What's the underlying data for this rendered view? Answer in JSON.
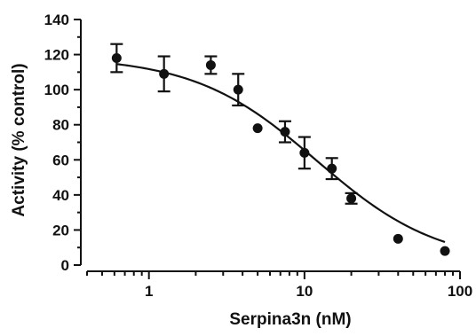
{
  "chart_data": {
    "type": "scatter",
    "xlabel": "Serpina3n (nM)",
    "ylabel": "Activity (% control)",
    "xscale": "log",
    "xlim": [
      0.4,
      100
    ],
    "ylim": [
      0,
      140
    ],
    "x_ticks": [
      1,
      10,
      100
    ],
    "x_tick_labels": [
      "1",
      "10",
      "100"
    ],
    "y_ticks": [
      0,
      20,
      40,
      60,
      80,
      100,
      120,
      140
    ],
    "y_tick_labels": [
      "0",
      "20",
      "40",
      "60",
      "80",
      "100",
      "120",
      "140"
    ],
    "grid": false,
    "legend": "none",
    "series": [
      {
        "x": [
          0.62,
          1.25,
          2.5,
          3.75,
          5,
          7.5,
          10,
          15,
          20,
          40,
          80
        ],
        "y": [
          118,
          109,
          114,
          100,
          78,
          76,
          64,
          55,
          38,
          15,
          8
        ],
        "error": [
          8,
          10,
          5,
          9,
          0,
          6,
          9,
          6,
          3,
          0,
          0
        ]
      }
    ],
    "fit_curve": {
      "type": "four-parameter-logistic",
      "top": 119,
      "bottom": 0,
      "ic50": 12,
      "hill": 1.1
    },
    "colors": {
      "axis": "#111111",
      "marker": "#111111",
      "curve": "#111111"
    }
  }
}
